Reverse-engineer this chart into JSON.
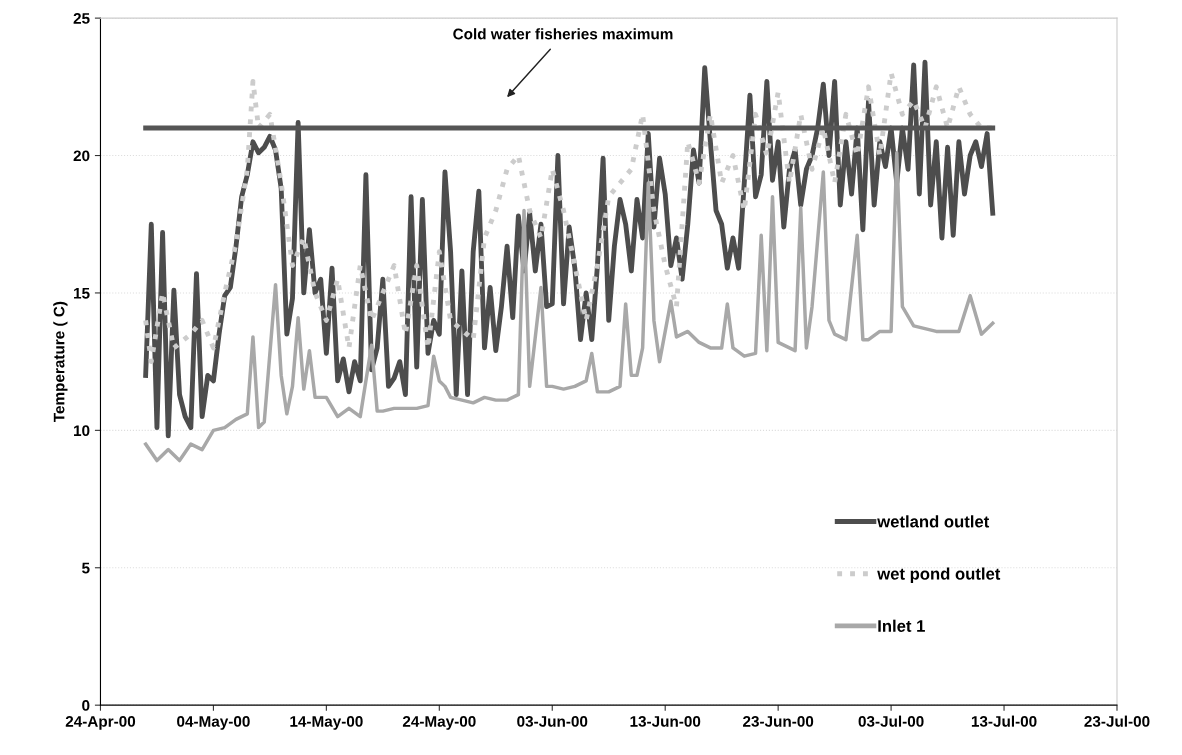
{
  "chart_data": {
    "type": "line",
    "ylabel": "Temperature ( C)",
    "xlim": [
      "2000-04-24",
      "2000-07-23"
    ],
    "xticks": [
      {
        "value": "2000-04-24",
        "label": "24-Apr-00"
      },
      {
        "value": "2000-05-04",
        "label": "04-May-00"
      },
      {
        "value": "2000-05-14",
        "label": "14-May-00"
      },
      {
        "value": "2000-05-24",
        "label": "24-May-00"
      },
      {
        "value": "2000-06-03",
        "label": "03-Jun-00"
      },
      {
        "value": "2000-06-13",
        "label": "13-Jun-00"
      },
      {
        "value": "2000-06-23",
        "label": "23-Jun-00"
      },
      {
        "value": "2000-07-03",
        "label": "03-Jul-00"
      },
      {
        "value": "2000-07-13",
        "label": "13-Jul-00"
      },
      {
        "value": "2000-07-23",
        "label": "23-Jul-00"
      }
    ],
    "ylim": [
      0,
      25
    ],
    "yticks": [
      0,
      5,
      10,
      15,
      20,
      25
    ],
    "grid": "y",
    "legend": "bottom right",
    "marker": "none",
    "annotations": [
      "Cold water fisheries maximum"
    ],
    "series": [
      {
        "color": "#555555",
        "line_style": "solid",
        "x": [
          "2000-04-28T00:00",
          "2000-07-12T00:00"
        ],
        "values": [
          21,
          21
        ]
      },
      {
        "name": "wetland outlet",
        "color": "#4d4d4d",
        "line_style": "solid",
        "x": [
          "2000-04-28T00:00",
          "2000-04-28T12:00",
          "2000-04-29T00:00",
          "2000-04-29T12:00",
          "2000-04-30T00:00",
          "2000-04-30T12:00",
          "2000-05-01T00:00",
          "2000-05-01T12:00",
          "2000-05-02T00:00",
          "2000-05-02T12:00",
          "2000-05-03T00:00",
          "2000-05-03T12:00",
          "2000-05-04T00:00",
          "2000-05-04T12:00",
          "2000-05-05T00:00",
          "2000-05-05T12:00",
          "2000-05-06T00:00",
          "2000-05-06T12:00",
          "2000-05-07T00:00",
          "2000-05-07T12:00",
          "2000-05-08T00:00",
          "2000-05-08T12:00",
          "2000-05-09T00:00",
          "2000-05-09T12:00",
          "2000-05-10T00:00",
          "2000-05-10T12:00",
          "2000-05-11T00:00",
          "2000-05-11T12:00",
          "2000-05-12T00:00",
          "2000-05-12T12:00",
          "2000-05-13T00:00",
          "2000-05-13T12:00",
          "2000-05-14T00:00",
          "2000-05-14T12:00",
          "2000-05-15T00:00",
          "2000-05-15T12:00",
          "2000-05-16T00:00",
          "2000-05-16T12:00",
          "2000-05-17T00:00",
          "2000-05-17T12:00",
          "2000-05-18T00:00",
          "2000-05-18T12:00",
          "2000-05-19T00:00",
          "2000-05-19T12:00",
          "2000-05-20T00:00",
          "2000-05-20T12:00",
          "2000-05-21T00:00",
          "2000-05-21T12:00",
          "2000-05-22T00:00",
          "2000-05-22T12:00",
          "2000-05-23T00:00",
          "2000-05-23T12:00",
          "2000-05-24T00:00",
          "2000-05-24T12:00",
          "2000-05-25T00:00",
          "2000-05-25T12:00",
          "2000-05-26T00:00",
          "2000-05-26T12:00",
          "2000-05-27T00:00",
          "2000-05-27T12:00",
          "2000-05-28T00:00",
          "2000-05-28T12:00",
          "2000-05-29T00:00",
          "2000-05-29T12:00",
          "2000-05-30T00:00",
          "2000-05-30T12:00",
          "2000-05-31T00:00",
          "2000-05-31T12:00",
          "2000-06-01T00:00",
          "2000-06-01T12:00",
          "2000-06-02T00:00",
          "2000-06-02T12:00",
          "2000-06-03T00:00",
          "2000-06-03T12:00",
          "2000-06-04T00:00",
          "2000-06-04T12:00",
          "2000-06-05T00:00",
          "2000-06-05T12:00",
          "2000-06-06T00:00",
          "2000-06-06T12:00",
          "2000-06-07T00:00",
          "2000-06-07T12:00",
          "2000-06-08T00:00",
          "2000-06-08T12:00",
          "2000-06-09T00:00",
          "2000-06-09T12:00",
          "2000-06-10T00:00",
          "2000-06-10T12:00",
          "2000-06-11T00:00",
          "2000-06-11T12:00",
          "2000-06-12T00:00",
          "2000-06-12T12:00",
          "2000-06-13T00:00",
          "2000-06-13T12:00",
          "2000-06-14T00:00",
          "2000-06-14T12:00",
          "2000-06-15T00:00",
          "2000-06-15T12:00",
          "2000-06-16T00:00",
          "2000-06-16T12:00",
          "2000-06-17T00:00",
          "2000-06-17T12:00",
          "2000-06-18T00:00",
          "2000-06-18T12:00",
          "2000-06-19T00:00",
          "2000-06-19T12:00",
          "2000-06-20T00:00",
          "2000-06-20T12:00",
          "2000-06-21T00:00",
          "2000-06-21T12:00",
          "2000-06-22T00:00",
          "2000-06-22T12:00",
          "2000-06-23T00:00",
          "2000-06-23T12:00",
          "2000-06-24T00:00",
          "2000-06-24T12:00",
          "2000-06-25T00:00",
          "2000-06-25T12:00",
          "2000-06-26T00:00",
          "2000-06-26T12:00",
          "2000-06-27T00:00",
          "2000-06-27T12:00",
          "2000-06-28T00:00",
          "2000-06-28T12:00",
          "2000-06-29T00:00",
          "2000-06-29T12:00",
          "2000-06-30T00:00",
          "2000-06-30T12:00",
          "2000-07-01T00:00",
          "2000-07-01T12:00",
          "2000-07-02T00:00",
          "2000-07-02T12:00",
          "2000-07-03T00:00",
          "2000-07-03T12:00",
          "2000-07-04T00:00",
          "2000-07-04T12:00",
          "2000-07-05T00:00",
          "2000-07-05T12:00",
          "2000-07-06T00:00",
          "2000-07-06T12:00",
          "2000-07-07T00:00",
          "2000-07-07T12:00",
          "2000-07-08T00:00",
          "2000-07-08T12:00",
          "2000-07-09T00:00",
          "2000-07-09T12:00",
          "2000-07-10T00:00",
          "2000-07-10T12:00",
          "2000-07-11T00:00",
          "2000-07-11T12:00",
          "2000-07-12T00:00"
        ],
        "values": [
          12,
          17.5,
          10.1,
          17.2,
          9.8,
          15.1,
          11.3,
          10.5,
          10.1,
          15.7,
          10.5,
          12,
          11.8,
          13.5,
          14.9,
          15.2,
          16.7,
          18.5,
          19.3,
          20.5,
          20.1,
          20.3,
          20.7,
          20.2,
          18.8,
          13.5,
          14.8,
          21.2,
          15,
          17.3,
          15,
          15.5,
          12.8,
          15.9,
          11.8,
          12.6,
          11.4,
          12.5,
          11.8,
          19.3,
          12.2,
          13,
          15.5,
          11.6,
          11.9,
          12.5,
          11.3,
          18.5,
          12.3,
          18.4,
          12.8,
          14,
          13.5,
          19.4,
          16.5,
          11.3,
          15.8,
          11.3,
          16.5,
          18.7,
          13,
          15.2,
          12.9,
          14.5,
          16.7,
          14.1,
          17.8,
          15.8,
          17.9,
          15.8,
          17.5,
          14.5,
          14.6,
          20,
          14.6,
          17.4,
          15.9,
          13.3,
          15,
          13.3,
          16,
          19.9,
          14,
          16.7,
          18.4,
          17.5,
          15.8,
          18.4,
          17,
          20.8,
          17.4,
          19.9,
          18.6,
          16,
          17,
          15.5,
          17.5,
          20.2,
          19,
          23.2,
          20.5,
          18,
          17.5,
          15.9,
          17,
          15.9,
          19,
          22.2,
          18.5,
          19.3,
          22.7,
          19.1,
          20.5,
          17.4,
          19.5,
          20.2,
          18.2,
          19.5,
          20,
          21,
          22.6,
          20,
          22.7,
          18.2,
          20.5,
          18.6,
          21,
          17.3,
          22,
          18.2,
          20.5,
          19.6,
          21,
          19,
          21,
          19.5,
          23.3,
          18.6,
          23.4,
          18.2,
          20.5,
          17,
          20.3,
          17.1,
          20.5,
          18.6,
          20,
          20.5,
          19.6,
          20.8,
          17.9
        ]
      },
      {
        "name": "wet pond outlet",
        "color": "#cccccc",
        "line_style": "dotted",
        "x": [
          "2000-04-28T00:00",
          "2000-04-28T12:00",
          "2000-04-29T12:00",
          "2000-04-30T12:00",
          "2000-05-02T00:00",
          "2000-05-03T00:00",
          "2000-05-04T00:00",
          "2000-05-05T00:00",
          "2000-05-06T00:00",
          "2000-05-07T00:00",
          "2000-05-07T12:00",
          "2000-05-08T00:00",
          "2000-05-09T00:00",
          "2000-05-10T00:00",
          "2000-05-11T00:00",
          "2000-05-12T00:00",
          "2000-05-13T00:00",
          "2000-05-14T00:00",
          "2000-05-15T00:00",
          "2000-05-16T00:00",
          "2000-05-17T00:00",
          "2000-05-18T00:00",
          "2000-05-20T00:00",
          "2000-05-21T00:00",
          "2000-05-22T00:00",
          "2000-05-23T00:00",
          "2000-05-24T00:00",
          "2000-05-25T00:00",
          "2000-05-27T00:00",
          "2000-05-28T00:00",
          "2000-05-29T00:00",
          "2000-05-30T00:00",
          "2000-05-31T00:00",
          "2000-06-01T00:00",
          "2000-06-02T00:00",
          "2000-06-03T00:00",
          "2000-06-04T00:00",
          "2000-06-05T00:00",
          "2000-06-06T00:00",
          "2000-06-07T00:00",
          "2000-06-08T00:00",
          "2000-06-09T00:00",
          "2000-06-10T00:00",
          "2000-06-11T00:00",
          "2000-06-12T00:00",
          "2000-06-13T00:00",
          "2000-06-14T00:00",
          "2000-06-15T00:00",
          "2000-06-16T00:00",
          "2000-06-17T00:00",
          "2000-06-18T00:00",
          "2000-06-19T00:00",
          "2000-06-20T00:00",
          "2000-06-21T00:00",
          "2000-06-22T00:00",
          "2000-06-23T00:00",
          "2000-06-24T00:00",
          "2000-06-25T00:00",
          "2000-06-26T00:00",
          "2000-06-27T00:00",
          "2000-06-28T00:00",
          "2000-06-29T00:00",
          "2000-06-30T00:00",
          "2000-07-01T00:00",
          "2000-07-02T00:00",
          "2000-07-03T00:00",
          "2000-07-04T00:00",
          "2000-07-05T00:00",
          "2000-07-06T00:00",
          "2000-07-07T00:00",
          "2000-07-08T00:00",
          "2000-07-09T00:00",
          "2000-07-10T00:00",
          "2000-07-11T00:00",
          "2000-07-12T00:00"
        ],
        "values": [
          14,
          12.5,
          15,
          13,
          13.5,
          14,
          13,
          15,
          16.8,
          19.5,
          22.7,
          21,
          21.5,
          19,
          16,
          17,
          15,
          14,
          15.5,
          13,
          16,
          14,
          16,
          13.5,
          16,
          13,
          16.5,
          14,
          13.3,
          17,
          18,
          19.5,
          20,
          18,
          17,
          19.5,
          18,
          16,
          14,
          16,
          18.5,
          19,
          19.5,
          21.5,
          18,
          16,
          14.5,
          20.5,
          19,
          21.5,
          19,
          20,
          18,
          21.5,
          20,
          22.3,
          19,
          21.5,
          19.5,
          21,
          19,
          21.5,
          20,
          22.5,
          20,
          23,
          21.5,
          22,
          21,
          22.5,
          21,
          22.5,
          21.5,
          21,
          21
        ]
      },
      {
        "name": "Inlet 1",
        "color": "#a8a8a8",
        "line_style": "solid",
        "x": [
          "2000-04-28T00:00",
          "2000-04-29T00:00",
          "2000-04-30T00:00",
          "2000-05-01T00:00",
          "2000-05-02T00:00",
          "2000-05-03T00:00",
          "2000-05-04T00:00",
          "2000-05-05T00:00",
          "2000-05-06T00:00",
          "2000-05-07T00:00",
          "2000-05-07T12:00",
          "2000-05-08T00:00",
          "2000-05-08T12:00",
          "2000-05-09T12:00",
          "2000-05-10T00:00",
          "2000-05-10T12:00",
          "2000-05-11T00:00",
          "2000-05-11T12:00",
          "2000-05-12T00:00",
          "2000-05-12T12:00",
          "2000-05-13T00:00",
          "2000-05-14T00:00",
          "2000-05-15T00:00",
          "2000-05-16T00:00",
          "2000-05-17T00:00",
          "2000-05-18T00:00",
          "2000-05-18T12:00",
          "2000-05-19T00:00",
          "2000-05-20T00:00",
          "2000-05-21T00:00",
          "2000-05-22T00:00",
          "2000-05-23T00:00",
          "2000-05-23T12:00",
          "2000-05-24T00:00",
          "2000-05-24T12:00",
          "2000-05-25T00:00",
          "2000-05-26T00:00",
          "2000-05-27T00:00",
          "2000-05-28T00:00",
          "2000-05-29T00:00",
          "2000-05-30T00:00",
          "2000-05-31T00:00",
          "2000-05-31T12:00",
          "2000-06-01T00:00",
          "2000-06-02T00:00",
          "2000-06-02T12:00",
          "2000-06-03T00:00",
          "2000-06-04T00:00",
          "2000-06-05T00:00",
          "2000-06-06T00:00",
          "2000-06-06T12:00",
          "2000-06-07T00:00",
          "2000-06-08T00:00",
          "2000-06-09T00:00",
          "2000-06-09T12:00",
          "2000-06-10T00:00",
          "2000-06-10T12:00",
          "2000-06-11T00:00",
          "2000-06-11T12:00",
          "2000-06-12T00:00",
          "2000-06-12T12:00",
          "2000-06-13T12:00",
          "2000-06-14T00:00",
          "2000-06-15T00:00",
          "2000-06-16T00:00",
          "2000-06-17T00:00",
          "2000-06-18T00:00",
          "2000-06-18T12:00",
          "2000-06-19T00:00",
          "2000-06-20T00:00",
          "2000-06-21T00:00",
          "2000-06-21T12:00",
          "2000-06-22T00:00",
          "2000-06-22T12:00",
          "2000-06-23T00:00",
          "2000-06-24T00:00",
          "2000-06-24T12:00",
          "2000-06-25T00:00",
          "2000-06-25T12:00",
          "2000-06-26T00:00",
          "2000-06-27T00:00",
          "2000-06-27T12:00",
          "2000-06-28T00:00",
          "2000-06-29T00:00",
          "2000-06-30T00:00",
          "2000-06-30T12:00",
          "2000-07-01T00:00",
          "2000-07-02T00:00",
          "2000-07-03T00:00",
          "2000-07-03T12:00",
          "2000-07-04T00:00",
          "2000-07-05T00:00",
          "2000-07-06T00:00",
          "2000-07-07T00:00",
          "2000-07-08T00:00",
          "2000-07-09T00:00",
          "2000-07-10T00:00",
          "2000-07-11T00:00",
          "2000-07-12T00:00"
        ],
        "values": [
          9.5,
          8.9,
          9.3,
          8.9,
          9.5,
          9.3,
          10,
          10.1,
          10.4,
          10.6,
          13.4,
          10.1,
          10.3,
          15.3,
          12,
          10.6,
          11.6,
          14.1,
          11.5,
          12.9,
          11.2,
          11.2,
          10.5,
          10.8,
          10.5,
          13.1,
          10.7,
          10.7,
          10.8,
          10.8,
          10.8,
          10.9,
          12.7,
          11.8,
          11.6,
          11.2,
          11.1,
          11,
          11.2,
          11.1,
          11.1,
          11.3,
          18,
          11.6,
          15.2,
          11.6,
          11.6,
          11.5,
          11.6,
          11.8,
          12.8,
          11.4,
          11.4,
          11.6,
          14.6,
          12,
          12,
          13,
          19,
          14,
          12.5,
          14.7,
          13.4,
          13.6,
          13.2,
          13,
          13,
          14.6,
          13,
          12.7,
          12.8,
          17.1,
          12.9,
          18.5,
          13.2,
          13,
          12.9,
          18.1,
          13,
          14.5,
          19.4,
          14,
          13.5,
          13.3,
          17.1,
          13.3,
          13.3,
          13.6,
          13.6,
          20.1,
          14.5,
          13.8,
          13.7,
          13.6,
          13.6,
          13.6,
          14.9,
          13.5,
          13.9
        ]
      }
    ]
  }
}
